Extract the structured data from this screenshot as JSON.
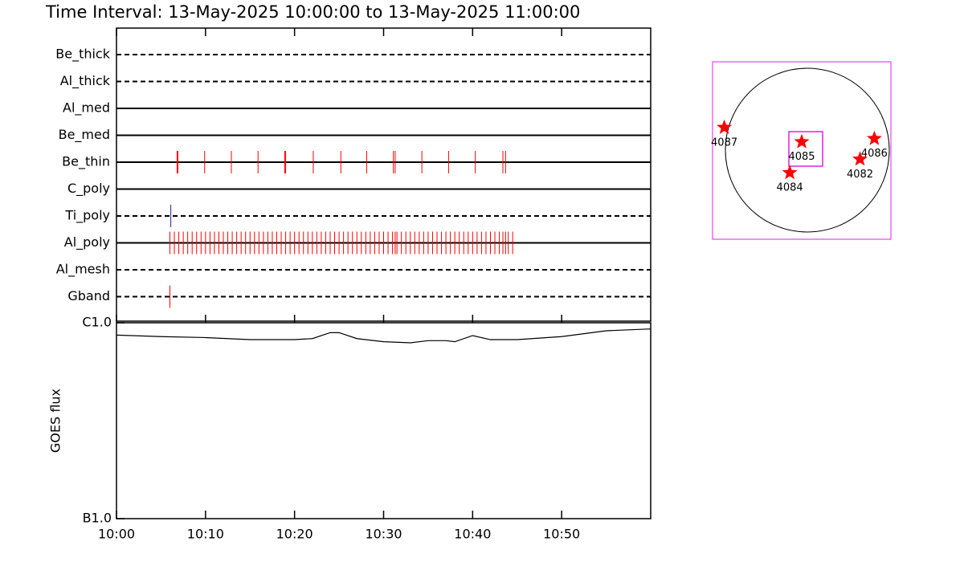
{
  "chart_data": [
    {
      "type": "timeline",
      "title": "Time Interval: 13-May-2025 10:00:00 to 13-May-2025 11:00:00",
      "xlim": [
        0,
        60
      ],
      "filters": [
        {
          "name": "Be_thick",
          "dashed": true,
          "color": "#ff0000",
          "times": []
        },
        {
          "name": "Al_thick",
          "dashed": true,
          "color": "#ff0000",
          "times": []
        },
        {
          "name": "Al_med",
          "dashed": false,
          "color": "#ff0000",
          "times": []
        },
        {
          "name": "Be_med",
          "dashed": false,
          "color": "#ff0000",
          "times": []
        },
        {
          "name": "Be_thin",
          "dashed": false,
          "color": "#ff0000",
          "times": [
            6.8,
            6.9,
            9.9,
            12.9,
            15.9,
            18.9,
            19.0,
            22.1,
            25.2,
            28.1,
            31.1,
            31.3,
            34.3,
            37.3,
            40.3,
            43.4,
            43.7
          ]
        },
        {
          "name": "C_poly",
          "dashed": false,
          "color": "#ff0000",
          "times": []
        },
        {
          "name": "Ti_poly",
          "dashed": true,
          "color": "#2020a0",
          "times": [
            6.1
          ]
        },
        {
          "name": "Al_poly",
          "dashed": false,
          "color": "#ff0000",
          "times": [
            6.0,
            6.5,
            7.0,
            7.5,
            8.0,
            8.5,
            9.0,
            9.5,
            10.0,
            10.5,
            11.0,
            11.5,
            12.0,
            12.5,
            13.0,
            13.5,
            14.0,
            14.5,
            15.0,
            15.5,
            16.0,
            16.5,
            17.0,
            17.5,
            18.0,
            18.5,
            19.0,
            19.5,
            20.0,
            20.5,
            21.0,
            21.5,
            22.0,
            22.5,
            23.0,
            23.5,
            24.0,
            24.5,
            25.0,
            25.5,
            26.0,
            26.5,
            27.0,
            27.5,
            28.0,
            28.5,
            29.0,
            29.5,
            30.0,
            30.5,
            31.0,
            31.3,
            31.5,
            32.0,
            32.5,
            33.0,
            33.5,
            34.0,
            34.5,
            35.0,
            35.5,
            36.0,
            36.5,
            37.0,
            37.5,
            38.0,
            38.5,
            39.0,
            39.5,
            40.0,
            40.5,
            41.0,
            41.5,
            42.0,
            42.5,
            43.0,
            43.4,
            43.7,
            44.0,
            44.5
          ]
        },
        {
          "name": "Al_mesh",
          "dashed": true,
          "color": "#ff0000",
          "times": []
        },
        {
          "name": "Gband",
          "dashed": true,
          "color": "#ff0000",
          "times": [
            6.0
          ]
        }
      ]
    },
    {
      "type": "line",
      "ylabel": "GOES flux",
      "log": true,
      "color": "#000000",
      "x": [
        0,
        5,
        10,
        15,
        20,
        22,
        24,
        25,
        27,
        30,
        33,
        35,
        37,
        38,
        40,
        42,
        45,
        50,
        55,
        60
      ],
      "values": [
        8.65e-07,
        8.5e-07,
        8.4e-07,
        8.2e-07,
        8.2e-07,
        8.3e-07,
        8.9e-07,
        8.9e-07,
        8.3e-07,
        8e-07,
        7.9e-07,
        8.1e-07,
        8.1e-07,
        8e-07,
        8.6e-07,
        8.2e-07,
        8.2e-07,
        8.5e-07,
        9.1e-07,
        9.3e-07
      ],
      "xlim": [
        0,
        60
      ],
      "xticks": [
        {
          "value": 0,
          "label": "10:00"
        },
        {
          "value": 10,
          "label": "10:10"
        },
        {
          "value": 20,
          "label": "10:20"
        },
        {
          "value": 30,
          "label": "10:30"
        },
        {
          "value": 40,
          "label": "10:40"
        },
        {
          "value": 50,
          "label": "10:50"
        }
      ],
      "ylim": [
        1e-07,
        1e-06
      ],
      "yticks": [
        {
          "value": 1e-07,
          "label": "B1.0"
        },
        {
          "value": 1e-06,
          "label": "C1.0"
        }
      ]
    },
    {
      "type": "scatter",
      "color": "#ff0000",
      "xlim": [
        -1050,
        1050
      ],
      "ylim": [
        -1050,
        1050
      ],
      "points": [
        {
          "label": "4087",
          "x": -912,
          "y": 273
        },
        {
          "label": "4085",
          "x": 0,
          "y": 103
        },
        {
          "label": "4084",
          "x": -141,
          "y": -263
        },
        {
          "label": "4082",
          "x": 686,
          "y": -103
        },
        {
          "label": "4086",
          "x": 855,
          "y": 141
        }
      ]
    }
  ]
}
